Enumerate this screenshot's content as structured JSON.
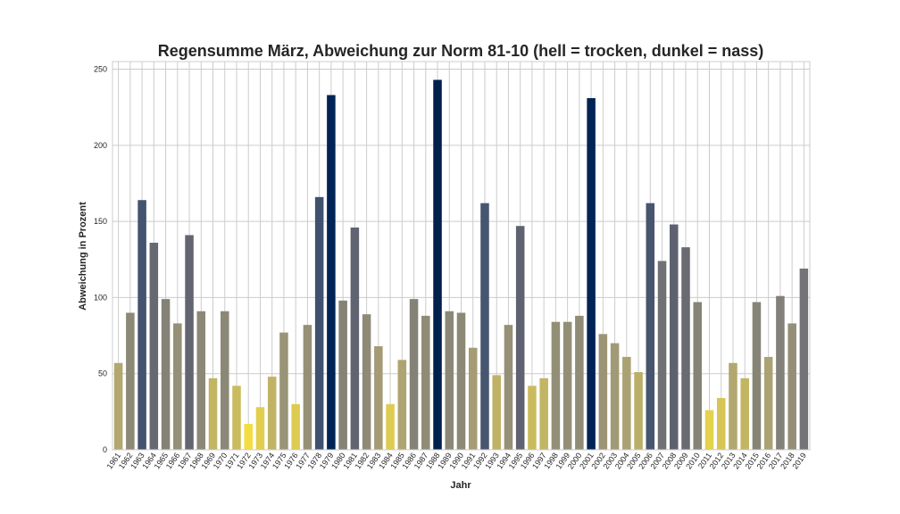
{
  "chart_data": {
    "type": "bar",
    "title": "Regensumme März, Abweichung zur Norm 81-10 (hell = trocken, dunkel = nass)",
    "xlabel": "Jahr",
    "ylabel": "Abweichung in Prozent",
    "ylim": [
      0,
      255
    ],
    "yticks": [
      0,
      50,
      100,
      150,
      200,
      250
    ],
    "grid": true,
    "legend": "none",
    "colormap": "cividis_r",
    "colormap_stops": [
      "#f3dd42",
      "#a9a075",
      "#7c7b78",
      "#5b5f6f",
      "#00306f",
      "#00204d"
    ],
    "categories": [
      "1961",
      "1962",
      "1963",
      "1964",
      "1965",
      "1966",
      "1967",
      "1968",
      "1969",
      "1970",
      "1971",
      "1972",
      "1973",
      "1974",
      "1975",
      "1976",
      "1977",
      "1978",
      "1979",
      "1980",
      "1981",
      "1982",
      "1983",
      "1984",
      "1985",
      "1986",
      "1987",
      "1988",
      "1989",
      "1990",
      "1991",
      "1992",
      "1993",
      "1994",
      "1995",
      "1996",
      "1997",
      "1998",
      "1999",
      "2000",
      "2001",
      "2002",
      "2003",
      "2004",
      "2005",
      "2006",
      "2007",
      "2008",
      "2009",
      "2010",
      "2011",
      "2012",
      "2013",
      "2014",
      "2015",
      "2016",
      "2017",
      "2018",
      "2019"
    ],
    "values": [
      57,
      90,
      164,
      136,
      99,
      83,
      141,
      91,
      47,
      91,
      42,
      17,
      28,
      48,
      77,
      30,
      82,
      166,
      233,
      98,
      146,
      89,
      68,
      30,
      59,
      99,
      88,
      243,
      91,
      90,
      67,
      162,
      49,
      82,
      147,
      42,
      47,
      84,
      84,
      88,
      231,
      76,
      70,
      61,
      51,
      162,
      124,
      148,
      133,
      97,
      26,
      34,
      57,
      47,
      97,
      61,
      101,
      83,
      119
    ]
  }
}
